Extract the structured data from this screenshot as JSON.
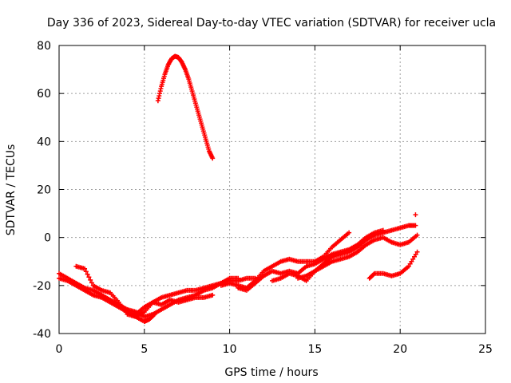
{
  "chart_data": {
    "type": "scatter",
    "title": "Day 336 of 2023, Sidereal Day-to-day VTEC variation (SDTVAR) for receiver ucla",
    "xlabel": "GPS time / hours",
    "ylabel": "SDTVAR / TECUs",
    "xlim": [
      0,
      25
    ],
    "ylim": [
      -40,
      80
    ],
    "xticks": [
      0,
      5,
      10,
      15,
      20,
      25
    ],
    "yticks": [
      -40,
      -20,
      0,
      20,
      40,
      60,
      80
    ],
    "grid": true,
    "legend": "none",
    "marker": "+",
    "color": "#ff0000",
    "series": [
      {
        "name": "satellite-arc-peak",
        "points": [
          [
            5.8,
            57
          ],
          [
            6.0,
            63
          ],
          [
            6.2,
            68
          ],
          [
            6.4,
            72
          ],
          [
            6.6,
            74.5
          ],
          [
            6.8,
            75.5
          ],
          [
            7.0,
            75
          ],
          [
            7.2,
            73
          ],
          [
            7.4,
            70
          ],
          [
            7.6,
            66
          ],
          [
            7.8,
            61
          ],
          [
            8.0,
            56
          ],
          [
            8.2,
            51
          ],
          [
            8.4,
            46
          ],
          [
            8.6,
            41
          ],
          [
            8.8,
            36
          ],
          [
            9.0,
            33
          ]
        ]
      },
      {
        "name": "arc-a",
        "points": [
          [
            0,
            -15
          ],
          [
            0.5,
            -17
          ],
          [
            1.0,
            -19
          ],
          [
            1.5,
            -21
          ],
          [
            2.0,
            -22
          ],
          [
            2.5,
            -24
          ],
          [
            3.0,
            -26
          ],
          [
            3.5,
            -28
          ],
          [
            4.0,
            -30
          ],
          [
            4.5,
            -31
          ],
          [
            5.0,
            -33
          ],
          [
            5.5,
            -32
          ],
          [
            6.0,
            -30
          ],
          [
            6.5,
            -28
          ],
          [
            7.0,
            -26
          ],
          [
            7.5,
            -25
          ],
          [
            8.0,
            -24
          ],
          [
            8.5,
            -22
          ],
          [
            9.0,
            -21
          ],
          [
            9.5,
            -19
          ],
          [
            10.0,
            -17
          ],
          [
            10.5,
            -17
          ]
        ]
      },
      {
        "name": "arc-b",
        "points": [
          [
            0,
            -17
          ],
          [
            0.5,
            -18
          ],
          [
            1.0,
            -20
          ],
          [
            1.5,
            -22
          ],
          [
            2.0,
            -24
          ],
          [
            2.5,
            -25
          ],
          [
            3.0,
            -27
          ],
          [
            3.5,
            -29
          ],
          [
            4.0,
            -31
          ],
          [
            4.5,
            -33
          ],
          [
            5.0,
            -35
          ],
          [
            5.3,
            -34
          ],
          [
            5.6,
            -32
          ]
        ]
      },
      {
        "name": "arc-c",
        "points": [
          [
            1.0,
            -12
          ],
          [
            1.5,
            -13
          ],
          [
            2.0,
            -20
          ],
          [
            2.5,
            -22
          ],
          [
            3.0,
            -23
          ],
          [
            3.5,
            -27
          ],
          [
            4.0,
            -32
          ],
          [
            4.5,
            -33
          ],
          [
            5.0,
            -31
          ],
          [
            5.5,
            -27
          ],
          [
            6.0,
            -28
          ],
          [
            6.5,
            -26
          ],
          [
            7.0,
            -27
          ],
          [
            7.5,
            -26
          ],
          [
            8.0,
            -25
          ],
          [
            8.5,
            -25
          ],
          [
            9.0,
            -24
          ]
        ]
      },
      {
        "name": "arc-d",
        "points": [
          [
            3.5,
            -28
          ],
          [
            4.0,
            -31
          ],
          [
            4.5,
            -32
          ],
          [
            5.0,
            -29
          ],
          [
            5.5,
            -27
          ],
          [
            6.0,
            -25
          ],
          [
            6.5,
            -24
          ],
          [
            7.0,
            -23
          ],
          [
            7.5,
            -22
          ],
          [
            8.0,
            -22
          ],
          [
            8.5,
            -21
          ],
          [
            9.0,
            -20
          ],
          [
            9.5,
            -19
          ],
          [
            10.0,
            -18
          ],
          [
            10.5,
            -18
          ],
          [
            11.0,
            -17
          ],
          [
            11.5,
            -17
          ]
        ]
      },
      {
        "name": "arc-e",
        "points": [
          [
            9.5,
            -20
          ],
          [
            10.0,
            -19
          ],
          [
            10.5,
            -20
          ],
          [
            11.0,
            -21
          ],
          [
            11.5,
            -18
          ],
          [
            12.0,
            -14
          ],
          [
            12.5,
            -12
          ],
          [
            13.0,
            -10
          ],
          [
            13.5,
            -9
          ],
          [
            14.0,
            -10
          ],
          [
            14.5,
            -10
          ],
          [
            15.0,
            -10
          ],
          [
            15.5,
            -8
          ],
          [
            16.0,
            -4
          ],
          [
            16.5,
            -1
          ],
          [
            17.0,
            2
          ]
        ]
      },
      {
        "name": "arc-f",
        "points": [
          [
            10.5,
            -21
          ],
          [
            11.0,
            -22
          ],
          [
            11.5,
            -19
          ],
          [
            12.0,
            -16
          ],
          [
            12.5,
            -14
          ],
          [
            13.0,
            -15
          ],
          [
            13.5,
            -14
          ],
          [
            14.0,
            -15
          ],
          [
            14.5,
            -12
          ],
          [
            15.0,
            -11
          ],
          [
            15.5,
            -9
          ],
          [
            16.0,
            -7
          ],
          [
            16.5,
            -6
          ],
          [
            17.0,
            -5
          ],
          [
            17.5,
            -3
          ],
          [
            18.0,
            0
          ],
          [
            18.5,
            2
          ],
          [
            19.0,
            3
          ]
        ]
      },
      {
        "name": "arc-g",
        "points": [
          [
            12.5,
            -18
          ],
          [
            13.0,
            -17
          ],
          [
            13.5,
            -15
          ],
          [
            14.0,
            -16
          ],
          [
            14.5,
            -18
          ],
          [
            15.0,
            -14
          ],
          [
            15.5,
            -11
          ],
          [
            16.0,
            -8
          ],
          [
            16.5,
            -7
          ],
          [
            17.0,
            -6
          ],
          [
            17.5,
            -4
          ],
          [
            18.0,
            -1
          ],
          [
            18.5,
            1
          ],
          [
            19.0,
            2
          ],
          [
            19.5,
            3
          ],
          [
            20.0,
            4
          ],
          [
            20.5,
            5
          ],
          [
            20.9,
            5
          ]
        ]
      },
      {
        "name": "arc-h",
        "points": [
          [
            14.0,
            -17
          ],
          [
            14.5,
            -16
          ],
          [
            15.0,
            -14
          ],
          [
            15.5,
            -12
          ],
          [
            16.0,
            -10
          ],
          [
            16.5,
            -9
          ],
          [
            17.0,
            -8
          ],
          [
            17.5,
            -6
          ],
          [
            18.0,
            -3
          ],
          [
            18.5,
            -1
          ],
          [
            19.0,
            0
          ],
          [
            19.5,
            -2
          ],
          [
            20.0,
            -3
          ],
          [
            20.5,
            -2
          ],
          [
            21.0,
            1
          ]
        ]
      },
      {
        "name": "arc-i",
        "points": [
          [
            18.2,
            -17
          ],
          [
            18.5,
            -15
          ],
          [
            19.0,
            -15
          ],
          [
            19.5,
            -16
          ],
          [
            20.0,
            -15
          ],
          [
            20.5,
            -12
          ],
          [
            21.0,
            -6
          ]
        ]
      },
      {
        "name": "isolated",
        "points": [
          [
            20.9,
            9.5
          ]
        ]
      }
    ]
  }
}
